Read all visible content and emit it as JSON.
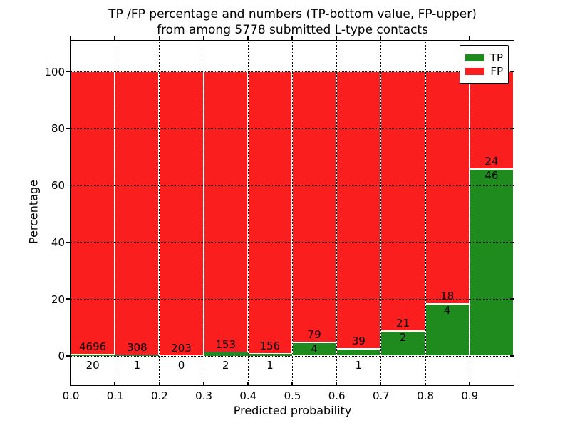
{
  "chart_data": {
    "type": "bar",
    "stacked": true,
    "title_line1": "TP /FP percentage and numbers (TP-bottom value, FP-upper)",
    "title_line2": "from among 5778 submitted L-type contacts",
    "xlabel": "Predicted probability",
    "ylabel": "Percentage",
    "xlim": [
      0.0,
      1.0
    ],
    "ylim": [
      -10.3,
      110.8
    ],
    "x_tick_labels": [
      "0.0",
      "0.1",
      "0.2",
      "0.3",
      "0.4",
      "0.5",
      "0.6",
      "0.7",
      "0.8",
      "0.9"
    ],
    "y_tick_values": [
      0,
      20,
      40,
      60,
      80,
      100
    ],
    "bin_width": 0.1,
    "grid_style": "dotted",
    "bar_edge_color": "#ffffff",
    "legend_position": "upper right",
    "series": [
      {
        "name": "TP",
        "color": "#1f8b1f",
        "values": [
          20,
          1,
          0,
          2,
          1,
          4,
          1,
          2,
          4,
          46
        ]
      },
      {
        "name": "FP",
        "color": "#fa1e1e",
        "values": [
          4696,
          308,
          203,
          153,
          156,
          79,
          39,
          21,
          18,
          24
        ]
      }
    ],
    "tp_percent_of_bin": [
      0.42,
      0.32,
      0.0,
      1.29,
      0.64,
      4.82,
      2.5,
      8.7,
      18.18,
      65.71
    ]
  }
}
